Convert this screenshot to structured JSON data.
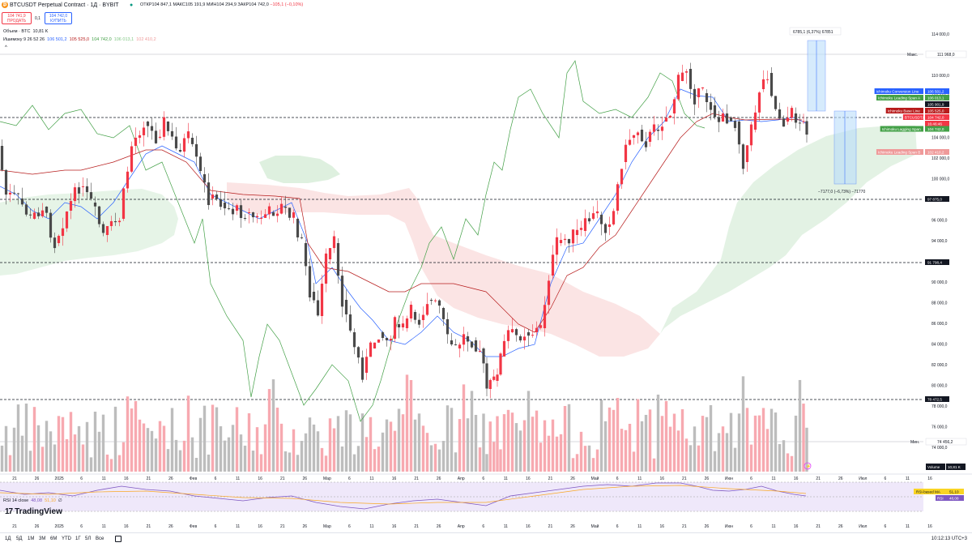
{
  "header": {
    "symbol": "BTCUSDT Perpetual Contract · 1Д · BYBIT",
    "ohlc_open_label": "ОТКР",
    "ohlc_open": "104 847,1",
    "ohlc_high_label": "МАКС",
    "ohlc_high": "105 191,9",
    "ohlc_low_label": "МИН",
    "ohlc_low": "104 294,9",
    "ohlc_close_label": "ЗАКР",
    "ohlc_close": "104 742,0",
    "ohlc_change": "−105,1 (−0,10%)"
  },
  "trade": {
    "sell_price": "104 741,9",
    "sell_label": "ПРОДАТЬ",
    "spread": "0,1",
    "buy_price": "104 742,0",
    "buy_label": "КУПИТЬ"
  },
  "legends": {
    "volume": "Объем · BTC",
    "volume_value": "10,81 K",
    "ichimoku": "Ишимоку 9 26 52 26",
    "ichi_v1": "106 501,2",
    "ichi_v2": "105 525,0",
    "ichi_v3": "104 742,0",
    "ichi_v4": "106 013,1",
    "ichi_v5": "102 410,2",
    "rsi": "RSI 14 close",
    "rsi_v1": "48,08",
    "rsi_v2": "51,10",
    "rsi_v3": "∅"
  },
  "logo": {
    "text": "TradingView",
    "mark": "17"
  },
  "price_axis": {
    "ticks": [
      "114 000,0",
      "112 000,0",
      "110 000,0",
      "108 000,0",
      "106 000,0",
      "104 000,0",
      "102 000,0",
      "100 000,0",
      "98 000,0",
      "96 000,0",
      "94 000,0",
      "92 000,0",
      "90 000,0",
      "88 000,0",
      "86 000,0",
      "84 000,0",
      "82 000,0",
      "80 000,0",
      "78 000,0",
      "76 000,0",
      "74 000,0"
    ],
    "max_label": "Макс.",
    "max_value": "111 968,0",
    "min_label": "Мин.",
    "min_value": "74 456,2",
    "tags": [
      {
        "label": "Ichimoku Conversion Line",
        "value": "106 501,2",
        "color": "#2962ff"
      },
      {
        "label": "Ichimoku Leading Span A",
        "value": "106 013,1",
        "color": "#43a047"
      },
      {
        "label": "",
        "value": "105 901,9",
        "color": "#131722"
      },
      {
        "label": "Ichimoku Base Line",
        "value": "105 525,0",
        "color": "#b71c1c"
      },
      {
        "label": "BTCUSDT.P",
        "value": "104 742,0",
        "color": "#f23645"
      },
      {
        "label": "",
        "value": "16:46:46",
        "color": "#f23645"
      },
      {
        "label": "Ichimoku Lagging Span",
        "value": "104 742,0",
        "color": "#43a047"
      },
      {
        "label": "Ichimoku Leading Span B",
        "value": "102 410,2",
        "color": "#ef9a9a"
      },
      {
        "label": "",
        "value": "97 875,0",
        "color": "#131722"
      },
      {
        "label": "",
        "value": "91 798,4",
        "color": "#131722"
      },
      {
        "label": "",
        "value": "78 472,5",
        "color": "#131722"
      }
    ],
    "volume_label": "Volume",
    "volume_value": "10,81 K",
    "rsi_ma_label": "RSI-based MA",
    "rsi_ma_value": "51,10",
    "rsi_label": "RSI",
    "rsi_value": "48,08"
  },
  "measure": {
    "up_text": "6785,1 (6,37%) 67851",
    "down_text": "−7177,0 (−6,73%) −71770"
  },
  "time_axis": [
    {
      "t": "21"
    },
    {
      "t": "26"
    },
    {
      "t": "2025"
    },
    {
      "t": "6"
    },
    {
      "t": "11"
    },
    {
      "t": "16"
    },
    {
      "t": "21"
    },
    {
      "t": "26"
    },
    {
      "t": "Фев"
    },
    {
      "t": "6"
    },
    {
      "t": "11"
    },
    {
      "t": "16"
    },
    {
      "t": "21"
    },
    {
      "t": "26"
    },
    {
      "t": "Мар"
    },
    {
      "t": "6"
    },
    {
      "t": "11"
    },
    {
      "t": "16"
    },
    {
      "t": "21"
    },
    {
      "t": "26"
    },
    {
      "t": "Апр"
    },
    {
      "t": "6"
    },
    {
      "t": "11"
    },
    {
      "t": "16"
    },
    {
      "t": "21"
    },
    {
      "t": "26"
    },
    {
      "t": "Май"
    },
    {
      "t": "6"
    },
    {
      "t": "11"
    },
    {
      "t": "16"
    },
    {
      "t": "21"
    },
    {
      "t": "26"
    },
    {
      "t": "Июн"
    },
    {
      "t": "6"
    },
    {
      "t": "11"
    },
    {
      "t": "16"
    },
    {
      "t": "21"
    },
    {
      "t": "26"
    },
    {
      "t": "Июл"
    },
    {
      "t": "6"
    },
    {
      "t": "11"
    },
    {
      "t": "16"
    }
  ],
  "bottombar": {
    "timeframes": [
      "1Д",
      "5Д",
      "1М",
      "3М",
      "6М",
      "YTD",
      "1Г",
      "5Л",
      "Все"
    ],
    "clock": "10:12:13 UTC+3"
  },
  "colors": {
    "up": "#089981",
    "down": "#f23645",
    "bull_candle": "#f23645",
    "bear_candle": "#4a4a4a"
  }
}
